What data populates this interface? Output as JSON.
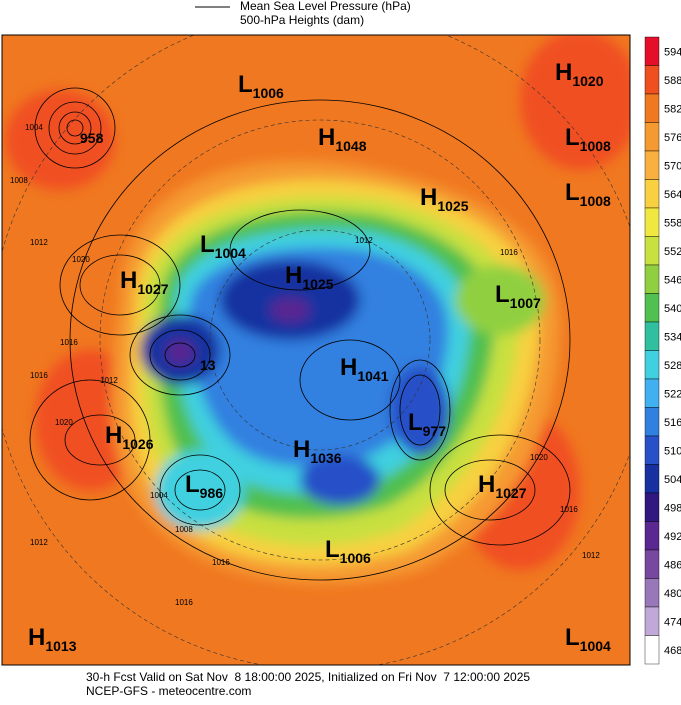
{
  "legend": {
    "items": [
      "Mean Sea Level Pressure (hPa)",
      "500-hPa Heights (dam)"
    ]
  },
  "colorbar": {
    "levels": [
      594,
      588,
      582,
      576,
      570,
      564,
      558,
      552,
      546,
      540,
      534,
      528,
      522,
      516,
      510,
      504,
      498,
      492,
      486,
      480,
      474,
      468
    ],
    "colors": [
      "#e4102a",
      "#f05020",
      "#f07820",
      "#f59a30",
      "#f8b040",
      "#f8d040",
      "#f0e840",
      "#c8e040",
      "#90d040",
      "#50c050",
      "#30c0a0",
      "#40d0e0",
      "#40b0f0",
      "#3080e0",
      "#2850c8",
      "#1830a0",
      "#301880",
      "#5a2890",
      "#7848a0",
      "#9878b8",
      "#c0a8d8",
      "#ffffff"
    ]
  },
  "centers": [
    {
      "letter": "L",
      "value": 1006
    },
    {
      "letter": "H",
      "value": 1020
    },
    {
      "value": 958
    },
    {
      "letter": "H",
      "value": 1048
    },
    {
      "letter": "L",
      "value": 1008
    },
    {
      "letter": "L",
      "value": 1008
    },
    {
      "letter": "H",
      "value": 1025
    },
    {
      "letter": "L",
      "value": 1004
    },
    {
      "letter": "H",
      "value": 1027
    },
    {
      "letter": "H",
      "value": 1025
    },
    {
      "letter": "L",
      "value": 1007
    },
    {
      "value": 13
    },
    {
      "letter": "H",
      "value": 1041
    },
    {
      "letter": "L",
      "value": 977
    },
    {
      "letter": "H",
      "value": 1026
    },
    {
      "letter": "H",
      "value": 1036
    },
    {
      "letter": "L",
      "value": 986
    },
    {
      "letter": "H",
      "value": 1027
    },
    {
      "letter": "L",
      "value": 1006
    },
    {
      "letter": "H",
      "value": 1013
    },
    {
      "letter": "L",
      "value": 1004
    }
  ],
  "contour_labels": [
    1004,
    1008,
    1012,
    1020,
    1016,
    1012,
    1016,
    1020,
    1012,
    1016,
    1020,
    1016,
    1012,
    1016,
    1016,
    1008,
    1004,
    1012
  ],
  "footer": [
    "30-h Fcst Valid on Sat Nov  8 18:00:00 2025, Initialized on Fri Nov  7 12:00:00 2025",
    "NCEP-GFS - meteocentre.com"
  ]
}
